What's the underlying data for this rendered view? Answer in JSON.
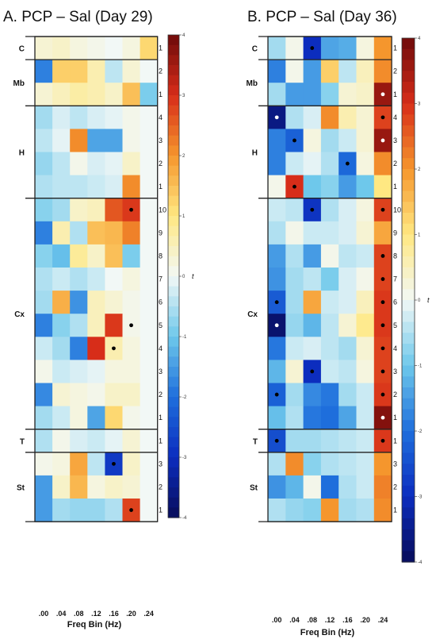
{
  "chart_data": [
    {
      "type": "heatmap",
      "title": "A. PCP – Sal (Day 29)",
      "xlabel": "Freq Bin (Hz)",
      "x_ticks": [
        ".00",
        ".04",
        ".08",
        ".12",
        ".16",
        ".20",
        ".24"
      ],
      "colorbar": {
        "label": "t",
        "range": [
          -4,
          4
        ],
        "ticks": [
          "4",
          "3",
          "2",
          "1",
          "0",
          "-1",
          "-2",
          "-3",
          "-4"
        ]
      },
      "groups": [
        {
          "name": "C",
          "rows": [
            {
              "label": "1",
              "values": [
                0.3,
                0.4,
                0.2,
                0.1,
                0.0,
                0.2,
                1.2
              ],
              "sig": []
            }
          ]
        },
        {
          "name": "Mb",
          "rows": [
            {
              "label": "2",
              "values": [
                -1.8,
                1.3,
                1.3,
                0.6,
                -0.4,
                0.3,
                0.0
              ],
              "sig": []
            },
            {
              "label": "1",
              "values": [
                0.3,
                0.5,
                0.7,
                0.6,
                0.4,
                1.5,
                -0.9
              ],
              "sig": []
            }
          ]
        },
        {
          "name": "H",
          "rows": [
            {
              "label": "4",
              "values": [
                -0.6,
                -0.2,
                -0.4,
                -0.2,
                -0.1,
                0.1,
                0.0
              ],
              "sig": []
            },
            {
              "label": "3",
              "values": [
                -0.4,
                -0.1,
                2.1,
                -1.4,
                -1.4,
                0.1,
                0.0
              ],
              "sig": []
            },
            {
              "label": "2",
              "values": [
                -0.7,
                -0.4,
                0.1,
                -0.2,
                -0.1,
                0.4,
                0.0
              ],
              "sig": []
            },
            {
              "label": "1",
              "values": [
                -0.5,
                -0.4,
                -0.4,
                -0.3,
                -0.2,
                2.1,
                0.0
              ],
              "sig": []
            }
          ]
        },
        {
          "name": "Cx",
          "rows": [
            {
              "label": "10",
              "values": [
                -0.8,
                -0.6,
                0.4,
                0.5,
                2.6,
                2.9,
                0.0
              ],
              "sig": [
                5
              ]
            },
            {
              "label": "9",
              "values": [
                -1.8,
                0.6,
                -0.5,
                1.5,
                1.6,
                2.2,
                0.0
              ],
              "sig": []
            },
            {
              "label": "8",
              "values": [
                -0.8,
                -1.1,
                0.8,
                0.4,
                1.5,
                -0.9,
                0.0
              ],
              "sig": []
            },
            {
              "label": "7",
              "values": [
                -0.5,
                -0.3,
                -0.5,
                -0.3,
                0.0,
                0.2,
                0.0
              ],
              "sig": []
            },
            {
              "label": "6",
              "values": [
                -0.6,
                1.7,
                -1.6,
                0.5,
                0.3,
                0.1,
                0.0
              ],
              "sig": []
            },
            {
              "label": "5",
              "values": [
                -1.8,
                -0.8,
                -0.5,
                0.5,
                2.9,
                0.1,
                0.0
              ],
              "sig": [
                5
              ]
            },
            {
              "label": "4",
              "values": [
                -0.3,
                -0.6,
                -1.8,
                3.0,
                0.6,
                0.2,
                0.0
              ],
              "sig": [
                4
              ]
            },
            {
              "label": "3",
              "values": [
                0.1,
                -0.3,
                -0.2,
                -0.1,
                0.2,
                0.2,
                0.0
              ],
              "sig": []
            },
            {
              "label": "2",
              "values": [
                -1.7,
                0.3,
                0.2,
                0.1,
                0.4,
                0.4,
                0.0
              ],
              "sig": []
            },
            {
              "label": "1",
              "values": [
                -0.6,
                -0.3,
                0.2,
                -1.4,
                1.2,
                0.1,
                0.0
              ],
              "sig": []
            }
          ]
        },
        {
          "name": "T",
          "rows": [
            {
              "label": "1",
              "values": [
                -0.5,
                0.1,
                -0.2,
                -0.3,
                -0.1,
                0.3,
                0.0
              ],
              "sig": []
            }
          ]
        },
        {
          "name": "St",
          "rows": [
            {
              "label": "3",
              "values": [
                0.1,
                0.2,
                1.8,
                -0.4,
                -2.8,
                0.4,
                0.0
              ],
              "sig": [
                4
              ]
            },
            {
              "label": "2",
              "values": [
                -1.5,
                0.4,
                1.6,
                0.2,
                0.4,
                0.3,
                0.0
              ],
              "sig": []
            },
            {
              "label": "1",
              "values": [
                -1.5,
                -0.6,
                -0.7,
                -0.7,
                -0.5,
                2.8,
                0.0
              ],
              "sig": [
                5
              ]
            }
          ]
        }
      ]
    },
    {
      "type": "heatmap",
      "title": "B. PCP – Sal (Day 36)",
      "xlabel": "Freq Bin (Hz)",
      "x_ticks": [
        ".00",
        ".04",
        ".08",
        ".12",
        ".16",
        ".20",
        ".24"
      ],
      "colorbar": {
        "label": "t",
        "range": [
          -4,
          4
        ],
        "ticks": [
          "4",
          "3",
          "2",
          "1",
          "0",
          "-1",
          "-2",
          "-3",
          "-4"
        ]
      },
      "groups": [
        {
          "name": "C",
          "rows": [
            {
              "label": "1",
              "values": [
                -0.6,
                0.1,
                -3.0,
                -1.4,
                -1.3,
                0.2,
                2.0
              ],
              "sig": [
                2
              ]
            }
          ]
        },
        {
          "name": "Mb",
          "rows": [
            {
              "label": "2",
              "values": [
                -1.8,
                0.1,
                -1.5,
                1.3,
                -0.4,
                0.5,
                2.1
              ],
              "sig": []
            },
            {
              "label": "1",
              "values": [
                -0.6,
                -1.5,
                -1.5,
                -0.8,
                0.3,
                0.4,
                3.6
              ],
              "sig": [
                6
              ]
            }
          ]
        },
        {
          "name": "H",
          "rows": [
            {
              "label": "4",
              "values": [
                -3.6,
                -0.5,
                -0.2,
                2.1,
                0.6,
                0.3,
                2.8
              ],
              "sig": [
                0,
                6
              ]
            },
            {
              "label": "3",
              "values": [
                -1.8,
                -2.2,
                0.2,
                -0.6,
                -0.3,
                0.3,
                3.6
              ],
              "sig": [
                1,
                6
              ]
            },
            {
              "label": "2",
              "values": [
                -1.8,
                -0.3,
                -0.1,
                -0.5,
                -2.1,
                0.2,
                2.1
              ],
              "sig": [
                4
              ]
            },
            {
              "label": "1",
              "values": [
                0.1,
                3.0,
                -1.0,
                -0.8,
                -1.5,
                -1.0,
                1.0
              ],
              "sig": [
                1
              ]
            }
          ]
        },
        {
          "name": "Cx",
          "rows": [
            {
              "label": "10",
              "values": [
                -0.3,
                -0.4,
                -2.9,
                -0.5,
                -0.2,
                0.2,
                2.8
              ],
              "sig": [
                2,
                6
              ]
            },
            {
              "label": "9",
              "values": [
                -0.5,
                0.1,
                -0.3,
                -0.3,
                -0.2,
                0.3,
                1.8
              ],
              "sig": []
            },
            {
              "label": "8",
              "values": [
                -1.5,
                -0.5,
                -1.5,
                0.1,
                -0.4,
                -0.3,
                2.8
              ],
              "sig": [
                6
              ]
            },
            {
              "label": "7",
              "values": [
                -1.6,
                -0.6,
                -0.4,
                -0.9,
                -0.2,
                0.1,
                2.8
              ],
              "sig": [
                6
              ]
            },
            {
              "label": "6",
              "values": [
                -2.3,
                -0.6,
                1.8,
                -0.3,
                -0.2,
                0.5,
                2.9
              ],
              "sig": [
                0,
                6
              ]
            },
            {
              "label": "5",
              "values": [
                -3.8,
                -0.7,
                -1.2,
                -0.4,
                0.3,
                0.9,
                2.9
              ],
              "sig": [
                0,
                6
              ]
            },
            {
              "label": "4",
              "values": [
                -1.9,
                -0.3,
                -0.2,
                -0.4,
                -0.6,
                0.3,
                2.8
              ],
              "sig": [
                6
              ]
            },
            {
              "label": "3",
              "values": [
                -1.2,
                0.3,
                -3.0,
                -0.3,
                -0.4,
                0.2,
                2.8
              ],
              "sig": [
                2,
                6
              ]
            },
            {
              "label": "2",
              "values": [
                -2.2,
                -0.6,
                -1.7,
                -1.9,
                -0.6,
                -0.3,
                2.9
              ],
              "sig": [
                0,
                6
              ]
            },
            {
              "label": "1",
              "values": [
                -1.1,
                -0.5,
                -1.9,
                -2.0,
                -1.4,
                -0.3,
                3.8
              ],
              "sig": [
                6
              ]
            }
          ]
        },
        {
          "name": "T",
          "rows": [
            {
              "label": "1",
              "values": [
                -2.5,
                -0.6,
                -0.6,
                -0.5,
                -0.4,
                -0.3,
                2.9
              ],
              "sig": [
                0,
                6
              ]
            }
          ]
        },
        {
          "name": "St",
          "rows": [
            {
              "label": "3",
              "values": [
                -0.5,
                2.1,
                -0.8,
                -0.5,
                -0.4,
                -0.3,
                2.0
              ],
              "sig": []
            },
            {
              "label": "2",
              "values": [
                -1.6,
                -1.2,
                0.1,
                -2.0,
                -0.5,
                -0.3,
                2.2
              ],
              "sig": []
            },
            {
              "label": "1",
              "values": [
                -0.5,
                -0.7,
                -0.8,
                2.0,
                -0.6,
                -0.5,
                2.1
              ],
              "sig": []
            }
          ]
        }
      ]
    }
  ]
}
